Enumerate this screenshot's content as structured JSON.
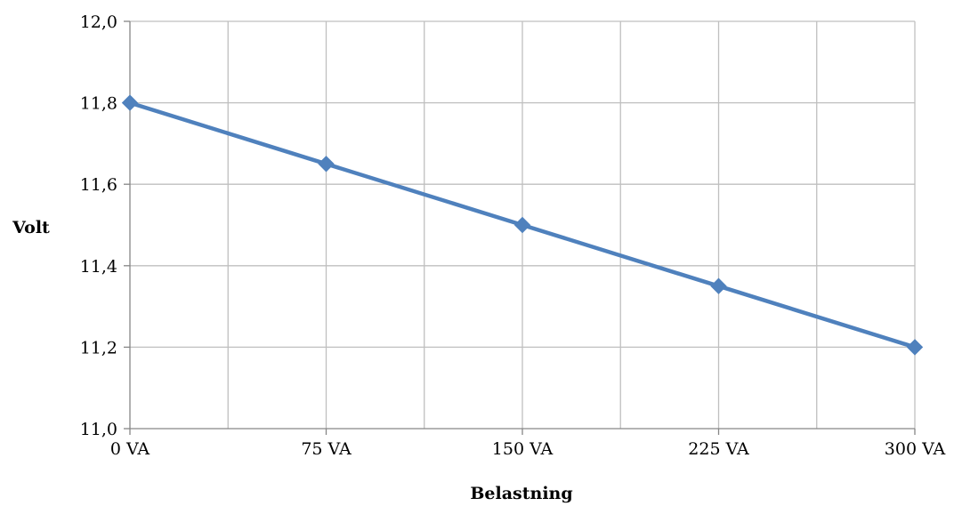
{
  "chart_data": {
    "type": "line",
    "title": "",
    "xlabel": "Belastning",
    "ylabel": "Volt",
    "categories": [
      "0 VA",
      "75 VA",
      "150 VA",
      "225 VA",
      "300 VA"
    ],
    "series": [
      {
        "values": [
          11.8,
          11.65,
          11.5,
          11.35,
          11.2
        ]
      }
    ],
    "ylim": [
      11.0,
      12.0
    ],
    "yticks": [
      "11,0",
      "11,2",
      "11,4",
      "11,6",
      "11,8",
      "12,0"
    ],
    "grid": true,
    "legend": "none",
    "line_color": "#4f81bd",
    "grid_color": "#bfbfbf",
    "axis_color": "#868686"
  }
}
